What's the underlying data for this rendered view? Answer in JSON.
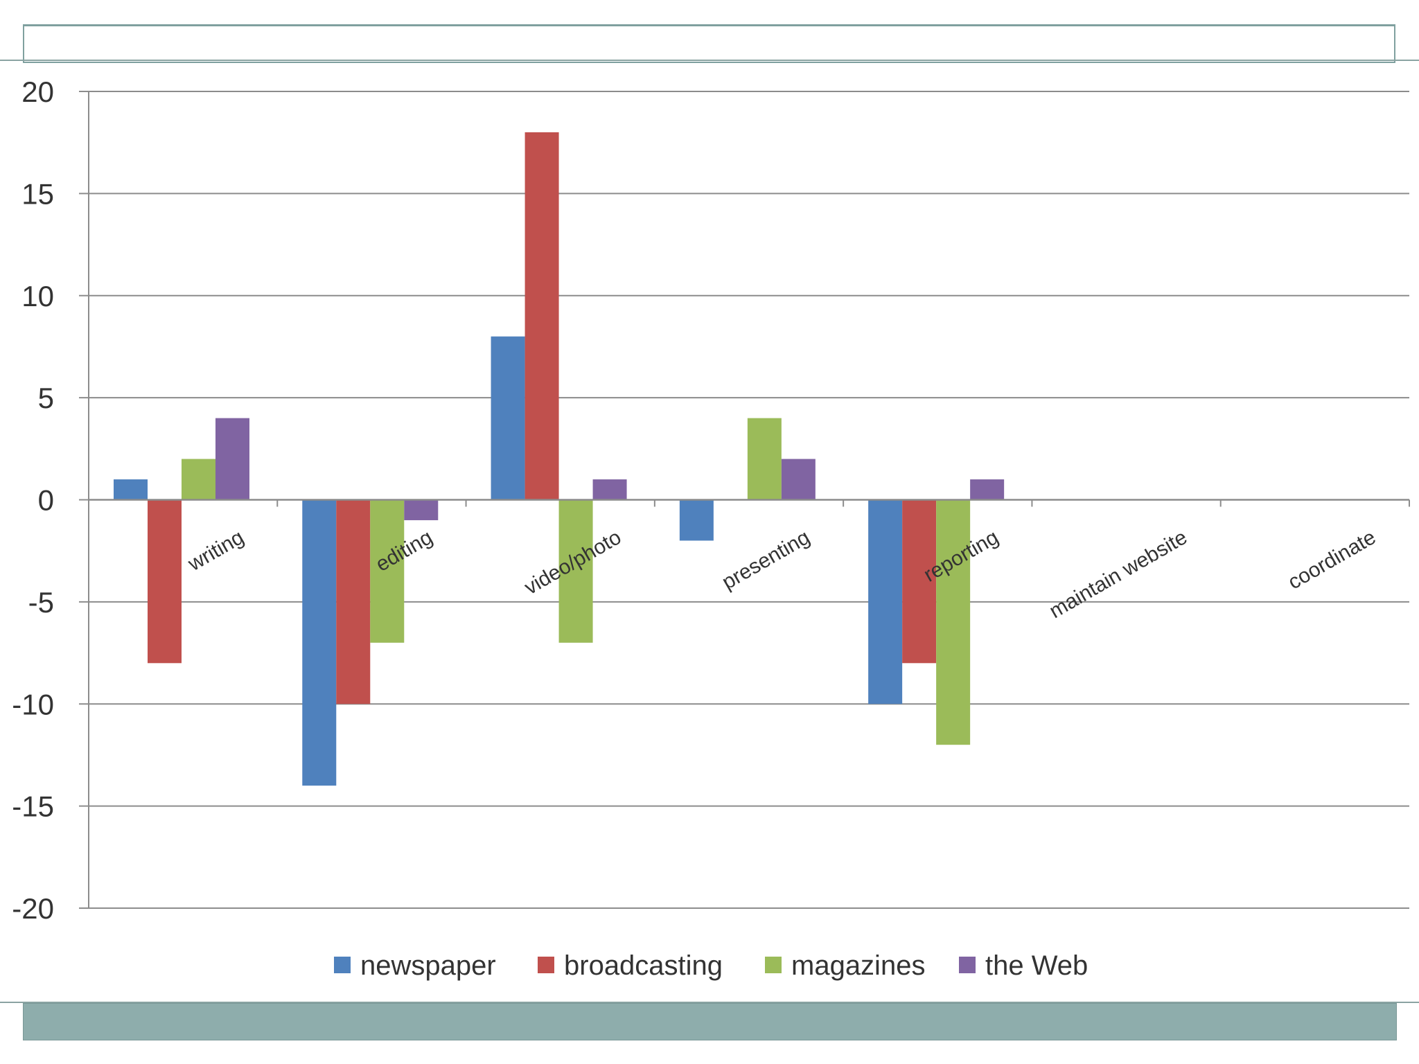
{
  "colors": {
    "newspaper": "#4f81bd",
    "broadcasting": "#c0504d",
    "magazines": "#9bbb59",
    "the_web": "#8064a2",
    "frame": "#8eadac"
  },
  "chart_data": {
    "type": "bar",
    "categories": [
      "writing",
      "editing",
      "video/photo",
      "presenting",
      "reporting",
      "maintain website",
      "coordinate"
    ],
    "series": [
      {
        "name": "newspaper",
        "color": "#4f81bd",
        "values": [
          1,
          -14,
          8,
          -2,
          -10,
          0,
          0
        ]
      },
      {
        "name": "broadcasting",
        "color": "#c0504d",
        "values": [
          -8,
          -10,
          18,
          0,
          -8,
          0,
          0
        ]
      },
      {
        "name": "magazines",
        "color": "#9bbb59",
        "values": [
          2,
          -7,
          -7,
          4,
          -12,
          0,
          0
        ]
      },
      {
        "name": "the Web",
        "color": "#8064a2",
        "values": [
          4,
          -1,
          1,
          2,
          1,
          0,
          0
        ]
      }
    ],
    "yticks": [
      "20",
      "15",
      "10",
      "5",
      "0",
      "-5",
      "-10",
      "-15",
      "-20"
    ],
    "ylim": [
      -20,
      20
    ],
    "grid": true,
    "legend_position": "bottom",
    "title": "",
    "xlabel": "",
    "ylabel": ""
  }
}
